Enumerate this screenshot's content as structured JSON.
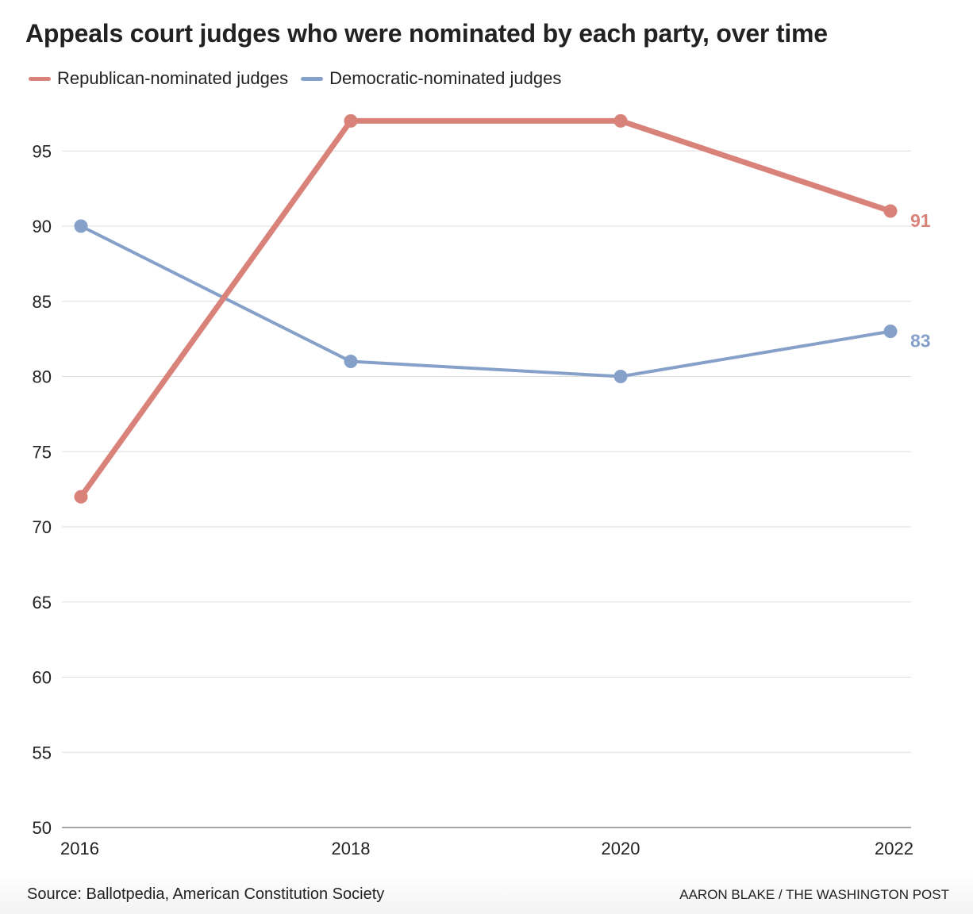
{
  "title": "Appeals court judges who were nominated by each party, over time",
  "source": "Source: Ballotpedia, American Constitution Society",
  "credit": "AARON BLAKE / THE WASHINGTON POST",
  "colors": {
    "republican": "#d9827a",
    "democratic": "#86a1c9",
    "grid": "#dddddd",
    "text": "#222222"
  },
  "chart_data": {
    "type": "line",
    "title": "Appeals court judges who were nominated by each party, over time",
    "xlabel": "",
    "ylabel": "",
    "x": [
      "2016",
      "2018",
      "2020",
      "2022"
    ],
    "ylim": [
      50,
      97
    ],
    "yticks": [
      50,
      55,
      60,
      65,
      70,
      75,
      80,
      85,
      90,
      95
    ],
    "grid": true,
    "legend_position": "top-left",
    "series": [
      {
        "name": "Republican-nominated judges",
        "values": [
          72,
          97,
          97,
          91
        ],
        "end_label": "91",
        "color": "#d9827a"
      },
      {
        "name": "Democratic-nominated judges",
        "values": [
          90,
          81,
          80,
          83
        ],
        "end_label": "83",
        "color": "#86a1c9"
      }
    ]
  }
}
